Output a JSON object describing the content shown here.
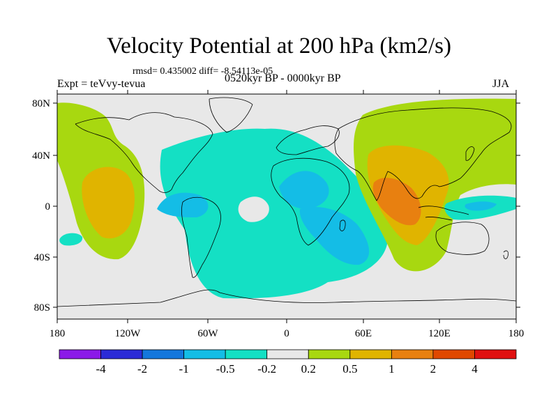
{
  "title": "Velocity Potential at 200 hPa (km2/s)",
  "stats": "rmsd= 0.435002 diff= -8.54113e-05",
  "left_label": "Expt = teVvy-tevua",
  "center_label": "0520kyr BP - 0000kyr BP",
  "right_label": "JJA",
  "map": {
    "projection": "cylindrical equidistant",
    "background_color": "#e8e8e8",
    "lat_ticks": [
      "80N",
      "40N",
      "0",
      "40S",
      "80S"
    ],
    "lon_ticks": [
      "180",
      "120W",
      "60W",
      "0",
      "60E",
      "120E",
      "180"
    ]
  },
  "colorbar": {
    "labels": [
      "-4",
      "-2",
      "-1",
      "-0.5",
      "-0.2",
      "0.2",
      "0.5",
      "1",
      "2",
      "4"
    ],
    "colors": [
      "#8b1ae8",
      "#2b2bd6",
      "#1477dc",
      "#14bde6",
      "#14e0c4",
      "#e8e8e8",
      "#a8d810",
      "#e0b400",
      "#e88010",
      "#e04800",
      "#e01010"
    ]
  }
}
